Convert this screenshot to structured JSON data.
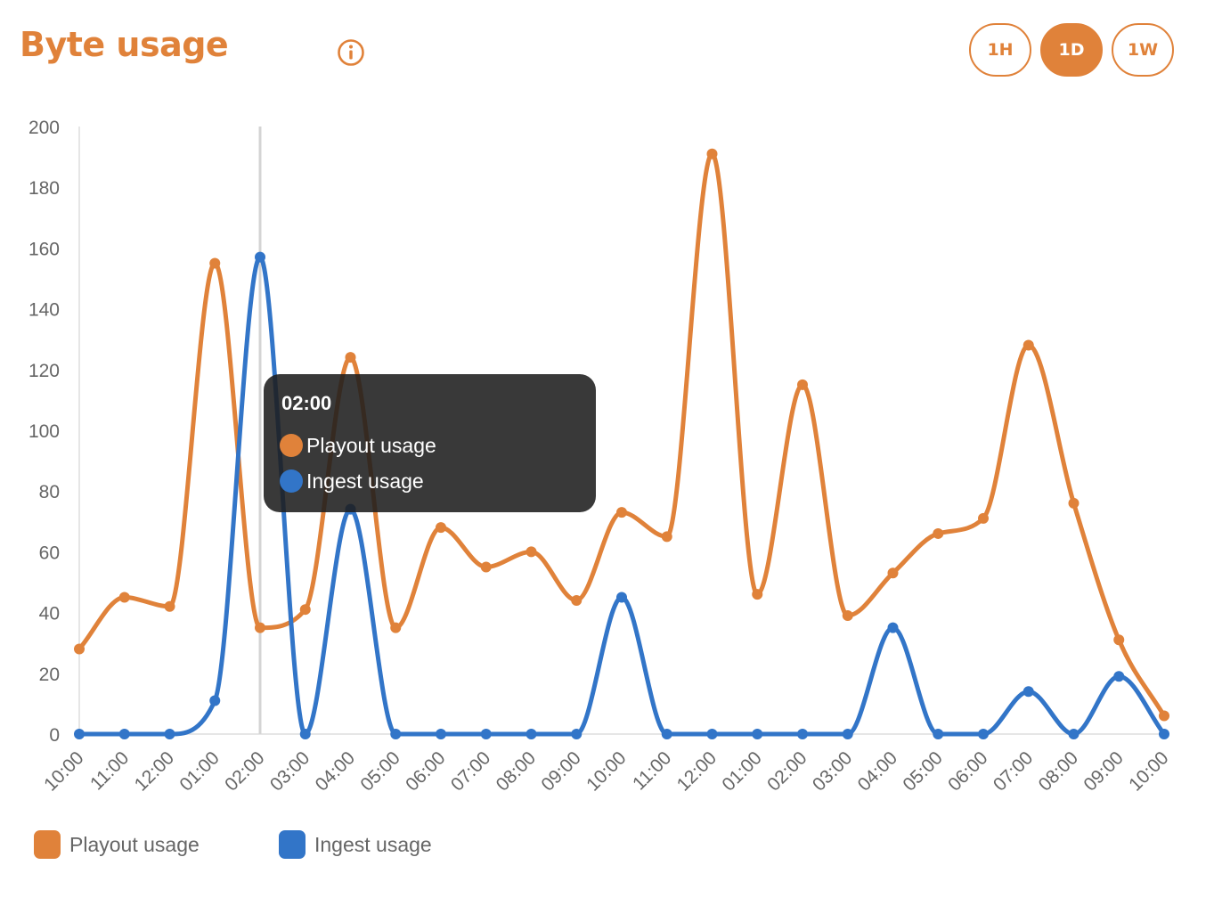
{
  "header": {
    "title": "Byte usage",
    "info_icon": "info-circle-icon",
    "ranges": [
      {
        "label": "1H",
        "active": false
      },
      {
        "label": "1D",
        "active": true
      },
      {
        "label": "1W",
        "active": false
      }
    ]
  },
  "tooltip": {
    "time": "02:00",
    "rows": [
      {
        "label": "Playout usage",
        "color": "#e0823a"
      },
      {
        "label": "Ingest usage",
        "color": "#3275c8"
      }
    ]
  },
  "legend": [
    {
      "label": "Playout usage",
      "color": "#e0823a"
    },
    {
      "label": "Ingest usage",
      "color": "#3275c8"
    }
  ],
  "chart_data": {
    "type": "line",
    "categories": [
      "10:00",
      "11:00",
      "12:00",
      "01:00",
      "02:00",
      "03:00",
      "04:00",
      "05:00",
      "06:00",
      "07:00",
      "08:00",
      "09:00",
      "10:00",
      "11:00",
      "12:00",
      "01:00",
      "02:00",
      "03:00",
      "04:00",
      "05:00",
      "06:00",
      "07:00",
      "08:00",
      "09:00",
      "10:00"
    ],
    "series": [
      {
        "name": "Playout usage",
        "color": "#e0823a",
        "values": [
          28,
          45,
          42,
          155,
          35,
          41,
          124,
          35,
          68,
          55,
          60,
          44,
          73,
          65,
          191,
          46,
          115,
          39,
          53,
          66,
          71,
          128,
          76,
          31,
          6
        ]
      },
      {
        "name": "Ingest usage",
        "color": "#3275c8",
        "values": [
          0,
          0,
          0,
          11,
          157,
          0,
          74,
          0,
          0,
          0,
          0,
          0,
          45,
          0,
          0,
          0,
          0,
          0,
          35,
          0,
          0,
          14,
          0,
          19,
          0
        ]
      }
    ],
    "ylim": [
      0,
      200
    ],
    "yticks": [
      0,
      20,
      40,
      60,
      80,
      100,
      120,
      140,
      160,
      180,
      200
    ],
    "highlight_index": 4,
    "grid": false,
    "legend_position": "bottom-left",
    "smooth": true
  }
}
